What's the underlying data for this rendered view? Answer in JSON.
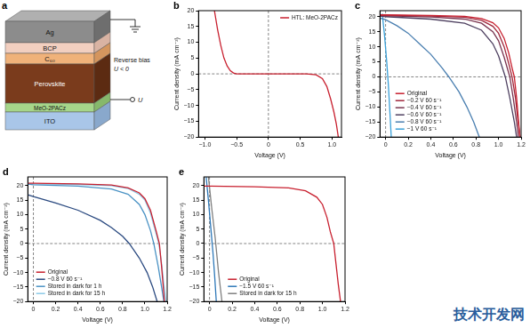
{
  "diagram": {
    "panel": "a",
    "layers": [
      "Ag",
      "BCP",
      "C₆₀",
      "Perovskite",
      "MeO-2PACz",
      "ITO"
    ],
    "bias_label": "Reverse bias",
    "bias_condition": "U < 0",
    "terminal_label": "U"
  },
  "watermark": "技术开发网",
  "chart_data": [
    {
      "panel": "b",
      "type": "line",
      "x_label": "Voltage (V)",
      "y_label": "Current density (mA cm⁻²)",
      "xlim": [
        -1.1,
        1.15
      ],
      "ylim": [
        -20,
        20
      ],
      "xticks": [
        {
          "value": -1,
          "label": "−1.0"
        },
        {
          "value": -0.5,
          "label": "−0.5"
        },
        0,
        0.5,
        {
          "value": 1,
          "label": "1.0"
        }
      ],
      "yticks": [
        {
          "value": -20,
          "label": "−20"
        },
        {
          "value": -15,
          "label": "−15"
        },
        {
          "value": -10,
          "label": "−10"
        },
        {
          "value": -5,
          "label": "−5"
        },
        0,
        5,
        10,
        15,
        20
      ],
      "grid": false,
      "legend": "upper right",
      "reference_lines": [
        {
          "axis": "x",
          "value": 0
        },
        {
          "axis": "y",
          "value": 0
        }
      ],
      "series": [
        {
          "name": "HTL: MeO-2PACz",
          "color": "#c8202f",
          "x": [
            -0.85,
            -0.8,
            -0.75,
            -0.7,
            -0.65,
            -0.6,
            -0.55,
            -0.5,
            0,
            0.6,
            0.75,
            0.85,
            0.92,
            0.98,
            1.03,
            1.07,
            1.1
          ],
          "values": [
            20,
            14,
            9,
            5,
            2.5,
            1,
            0.3,
            0,
            0,
            0,
            -0.3,
            -1.5,
            -4,
            -8,
            -12,
            -16,
            -20
          ]
        }
      ]
    },
    {
      "panel": "c",
      "type": "line",
      "x_label": "Voltage (V)",
      "y_label": "Current density (mA cm⁻²)",
      "xlim": [
        -0.05,
        1.2
      ],
      "ylim": [
        -20,
        22
      ],
      "xticks": [
        0,
        0.2,
        0.4,
        0.6,
        0.8,
        {
          "value": 1,
          "label": "1.0"
        },
        1.2
      ],
      "yticks": [
        {
          "value": -20,
          "label": "−20"
        },
        {
          "value": -15,
          "label": "−15"
        },
        {
          "value": -10,
          "label": "−10"
        },
        {
          "value": -5,
          "label": "−5"
        },
        0,
        5,
        10,
        15,
        20
      ],
      "grid": false,
      "legend": "lower left",
      "reference_lines": [
        {
          "axis": "x",
          "value": 0
        },
        {
          "axis": "y",
          "value": 0
        }
      ],
      "series": [
        {
          "name": "Original",
          "color": "#c8202f",
          "x": [
            -0.05,
            0,
            0.4,
            0.7,
            0.85,
            0.95,
            1.0,
            1.05,
            1.09,
            1.12,
            1.14,
            1.16,
            1.18,
            1.19
          ],
          "values": [
            20.6,
            20.6,
            20.4,
            20.1,
            19.4,
            18,
            16.3,
            12.8,
            8,
            3,
            0,
            -7,
            -16,
            -20
          ]
        },
        {
          "name": "−0.2 V 60 s⁻¹",
          "color": "#a0283c",
          "x": [
            -0.05,
            0,
            0.4,
            0.7,
            0.85,
            0.95,
            1.0,
            1.05,
            1.09,
            1.12,
            1.15,
            1.17,
            1.19
          ],
          "values": [
            20.5,
            20.5,
            20.2,
            19.8,
            18.8,
            16.8,
            14.5,
            10,
            4.5,
            0,
            -7,
            -14,
            -20
          ]
        },
        {
          "name": "−0.4 V 60 s⁻¹",
          "color": "#7a3550",
          "x": [
            -0.05,
            0,
            0.4,
            0.7,
            0.85,
            0.95,
            1.0,
            1.05,
            1.1,
            1.13,
            1.16,
            1.175
          ],
          "values": [
            20.4,
            20.3,
            19.9,
            19.2,
            17.8,
            15,
            12,
            6.5,
            0,
            -7,
            -15,
            -20
          ]
        },
        {
          "name": "−0.6 V 60 s⁻¹",
          "color": "#4e4060",
          "x": [
            -0.05,
            0,
            0.4,
            0.7,
            0.85,
            0.95,
            1.0,
            1.06,
            1.1,
            1.14,
            1.16
          ],
          "values": [
            20.2,
            20,
            19.2,
            17.8,
            15.5,
            11,
            7,
            0,
            -7,
            -15,
            -20
          ]
        },
        {
          "name": "−0.8 V 60 s⁻¹",
          "color": "#4a7fb0",
          "x": [
            -0.05,
            0,
            0.1,
            0.2,
            0.3,
            0.4,
            0.5,
            0.56,
            0.65,
            0.72,
            0.78,
            0.83
          ],
          "values": [
            19.5,
            19,
            17,
            14.5,
            11,
            7.5,
            3,
            0,
            -5,
            -10,
            -15,
            -20
          ]
        },
        {
          "name": "−1 V 60 s⁻¹",
          "color": "#3aa0d8",
          "x": [
            -0.03,
            -0.01,
            0.01,
            0.025,
            0.04,
            0.05
          ],
          "values": [
            21,
            14,
            5,
            -3,
            -13,
            -20
          ]
        }
      ]
    },
    {
      "panel": "d",
      "type": "line",
      "x_label": "Voltage (V)",
      "y_label": "Current density (mA cm⁻²)",
      "xlim": [
        -0.05,
        1.2
      ],
      "ylim": [
        -20,
        23
      ],
      "xticks": [
        0,
        0.2,
        0.4,
        0.6,
        0.8,
        {
          "value": 1,
          "label": "1.0"
        },
        1.2
      ],
      "yticks": [
        {
          "value": -20,
          "label": "−20"
        },
        {
          "value": -15,
          "label": "−15"
        },
        {
          "value": -10,
          "label": "−10"
        },
        {
          "value": -5,
          "label": "−5"
        },
        0,
        5,
        10,
        15,
        20
      ],
      "grid": false,
      "legend": "lower left",
      "reference_lines": [
        {
          "axis": "x",
          "value": 0
        },
        {
          "axis": "y",
          "value": 0
        }
      ],
      "series": [
        {
          "name": "Original",
          "color": "#c8202f",
          "x": [
            -0.05,
            0,
            0.4,
            0.7,
            0.85,
            0.95,
            1.0,
            1.05,
            1.1,
            1.13,
            1.15,
            1.165,
            1.175
          ],
          "values": [
            20.8,
            20.8,
            20.6,
            20.2,
            19.2,
            17.5,
            15.5,
            11.5,
            4.5,
            0,
            -8,
            -15,
            -20
          ]
        },
        {
          "name": "−0.8 V 60 s⁻¹",
          "color": "#2b4a80",
          "x": [
            -0.05,
            0,
            0.2,
            0.4,
            0.6,
            0.7,
            0.8,
            0.86,
            0.95,
            1.02,
            1.07,
            1.11
          ],
          "values": [
            16.8,
            16.2,
            14,
            11.5,
            8,
            5.5,
            2.5,
            0,
            -5,
            -10,
            -15,
            -20
          ]
        },
        {
          "name": "Stored in dark for 1 h",
          "color": "#4a92c4",
          "x": [
            -0.05,
            0,
            0.4,
            0.7,
            0.85,
            0.95,
            1.0,
            1.05,
            1.08,
            1.12,
            1.15,
            1.17
          ],
          "values": [
            20.5,
            20.3,
            19.8,
            18.8,
            17,
            13.5,
            10,
            4.5,
            0,
            -8,
            -15,
            -20
          ]
        },
        {
          "name": "Stored in dark for 15 h",
          "color": "#8ccbe8",
          "x": [
            -0.05,
            0,
            0.4,
            0.7,
            0.85,
            0.95,
            1.0,
            1.05,
            1.1,
            1.125,
            1.15,
            1.17,
            1.19
          ],
          "values": [
            20.7,
            20.6,
            20.4,
            20,
            19,
            17,
            15,
            10.5,
            3.5,
            0,
            -7,
            -14,
            -20
          ]
        }
      ]
    },
    {
      "panel": "e",
      "type": "line",
      "x_label": "Voltage (V)",
      "y_label": "Current density (mA cm⁻²)",
      "xlim": [
        -0.05,
        1.2
      ],
      "ylim": [
        -20,
        23
      ],
      "xticks": [
        0,
        0.2,
        0.4,
        0.6,
        0.8,
        {
          "value": 1,
          "label": "1.0"
        },
        1.2
      ],
      "yticks": [
        {
          "value": -20,
          "label": "−20"
        },
        {
          "value": -15,
          "label": "−15"
        },
        {
          "value": -10,
          "label": "−10"
        },
        {
          "value": -5,
          "label": "−5"
        },
        0,
        5,
        10,
        15,
        20
      ],
      "grid": false,
      "legend": "lower left",
      "reference_lines": [
        {
          "axis": "x",
          "value": 0
        },
        {
          "axis": "y",
          "value": 0
        }
      ],
      "series": [
        {
          "name": "Original",
          "color": "#c8202f",
          "x": [
            -0.05,
            0,
            0.4,
            0.7,
            0.85,
            0.95,
            1.0,
            1.04,
            1.07,
            1.1,
            1.12,
            1.14,
            1.16
          ],
          "values": [
            19.8,
            19.8,
            19.6,
            19.2,
            18.2,
            16,
            13.5,
            9,
            4,
            0,
            -7,
            -14,
            -20
          ]
        },
        {
          "name": "−1.5 V 60 s⁻¹",
          "color": "#2e78b8",
          "x": [
            -0.03,
            -0.01,
            0.01,
            0.03,
            0.045,
            0.06
          ],
          "values": [
            23,
            15,
            6,
            -3,
            -11,
            -20
          ]
        },
        {
          "name": "Stored in dark for 15 h",
          "color": "#808080",
          "x": [
            -0.01,
            0.02,
            0.05,
            0.08,
            0.11
          ],
          "values": [
            23,
            12,
            2,
            -10,
            -20
          ]
        }
      ]
    }
  ]
}
